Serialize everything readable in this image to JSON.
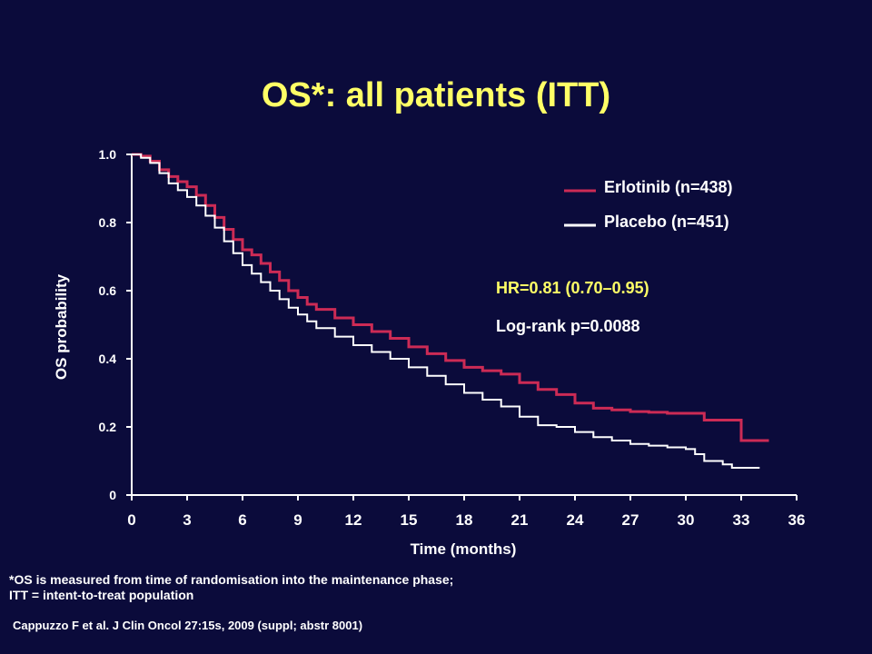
{
  "slide": {
    "title": "OS*: all patients (ITT)",
    "footnote_line1": "*OS is measured from time of randomisation into the maintenance phase;",
    "footnote_line2": "ITT = intent-to-treat population",
    "citation": "Cappuzzo F et al. J Clin Oncol 27:15s, 2009 (suppl; abstr 8001)"
  },
  "chart_data": {
    "type": "line",
    "subtype": "kaplan-meier step curve",
    "title": "OS*: all patients (ITT)",
    "xlabel": "Time (months)",
    "ylabel": "OS probability",
    "xlim": [
      0,
      36
    ],
    "ylim": [
      0,
      1.0
    ],
    "x_ticks": [
      0,
      3,
      6,
      9,
      12,
      15,
      18,
      21,
      24,
      27,
      30,
      33,
      36
    ],
    "x_tick_labels": [
      "0",
      "3",
      "6",
      "9",
      "12",
      "15",
      "18",
      "21",
      "24",
      "27",
      "30",
      "33",
      "36"
    ],
    "y_ticks": [
      0,
      0.2,
      0.4,
      0.6,
      0.8,
      1.0
    ],
    "y_tick_labels": [
      "0",
      "0.2",
      "0.4",
      "0.6",
      "0.8",
      "1.0"
    ],
    "grid": false,
    "legend_position": "top-right",
    "series": [
      {
        "name": "Erlotinib (n=438)",
        "color": "#cc2b55",
        "x": [
          0,
          0.5,
          1,
          1.5,
          2,
          2.5,
          3,
          3.5,
          4,
          4.5,
          5,
          5.5,
          6,
          6.5,
          7,
          7.5,
          8,
          8.5,
          9,
          9.5,
          10,
          11,
          12,
          13,
          14,
          15,
          16,
          17,
          18,
          19,
          20,
          21,
          22,
          23,
          24,
          25,
          26,
          27,
          28,
          29,
          30,
          30.5,
          31,
          32,
          32.5,
          33,
          34.5
        ],
        "y": [
          1.0,
          0.995,
          0.98,
          0.955,
          0.935,
          0.92,
          0.905,
          0.88,
          0.85,
          0.815,
          0.78,
          0.75,
          0.72,
          0.705,
          0.68,
          0.655,
          0.63,
          0.6,
          0.58,
          0.56,
          0.545,
          0.52,
          0.5,
          0.48,
          0.46,
          0.435,
          0.415,
          0.395,
          0.375,
          0.365,
          0.355,
          0.33,
          0.31,
          0.295,
          0.27,
          0.255,
          0.25,
          0.245,
          0.243,
          0.24,
          0.24,
          0.24,
          0.22,
          0.22,
          0.22,
          0.16,
          0.16
        ]
      },
      {
        "name": "Placebo (n=451)",
        "color": "#ffffff",
        "x": [
          0,
          0.5,
          1,
          1.5,
          2,
          2.5,
          3,
          3.5,
          4,
          4.5,
          5,
          5.5,
          6,
          6.5,
          7,
          7.5,
          8,
          8.5,
          9,
          9.5,
          10,
          11,
          12,
          13,
          14,
          15,
          16,
          17,
          18,
          19,
          20,
          21,
          22,
          23,
          24,
          25,
          26,
          27,
          28,
          29,
          30,
          30.5,
          31,
          32,
          32.5,
          33,
          34
        ],
        "y": [
          1.0,
          0.99,
          0.975,
          0.945,
          0.915,
          0.895,
          0.875,
          0.85,
          0.82,
          0.785,
          0.745,
          0.71,
          0.675,
          0.65,
          0.625,
          0.6,
          0.575,
          0.55,
          0.53,
          0.51,
          0.49,
          0.465,
          0.44,
          0.42,
          0.4,
          0.375,
          0.35,
          0.325,
          0.3,
          0.28,
          0.26,
          0.23,
          0.205,
          0.2,
          0.185,
          0.17,
          0.16,
          0.15,
          0.145,
          0.14,
          0.135,
          0.12,
          0.1,
          0.09,
          0.08,
          0.08,
          0.08
        ]
      }
    ],
    "annotations": [
      {
        "text": "HR=0.81 (0.70–0.95)",
        "color": "#ffff66"
      },
      {
        "text": "Log-rank p=0.0088",
        "color": "#ffffff"
      }
    ]
  }
}
